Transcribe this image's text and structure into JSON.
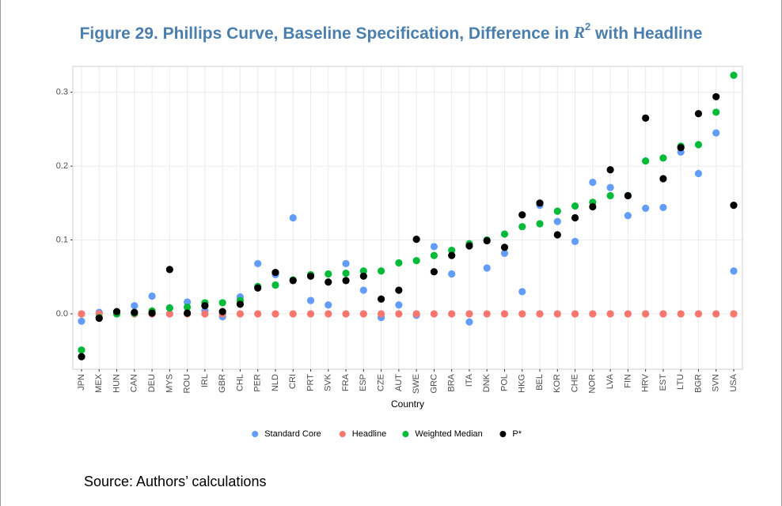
{
  "chart_data": {
    "type": "scatter",
    "title": {
      "before": "Figure 29. Phillips Curve, Baseline Specification, Difference in ",
      "symbol": "R",
      "superscript": "2",
      "after": " with Headline"
    },
    "x_label": "Country",
    "source": "Source: Authors’ calculations",
    "categories": [
      "JPN",
      "MEX",
      "HUN",
      "CAN",
      "DEU",
      "MYS",
      "ROU",
      "IRL",
      "GBR",
      "CHL",
      "PER",
      "NLD",
      "CRI",
      "PRT",
      "SVK",
      "FRA",
      "ESP",
      "CZE",
      "AUT",
      "SWE",
      "GRC",
      "BRA",
      "ITA",
      "DNK",
      "POL",
      "HKG",
      "BEL",
      "KOR",
      "CHE",
      "NOR",
      "LVA",
      "FIN",
      "HRV",
      "EST",
      "LTU",
      "BGR",
      "SVN",
      "USA"
    ],
    "ylim": [
      -0.075,
      0.335
    ],
    "yticks": [
      {
        "value": 0,
        "label": "0.0"
      },
      0.1,
      0.2,
      0.3
    ],
    "grid": true,
    "legend": "bottom",
    "series": [
      {
        "name": "Standard Core",
        "color": "#619cff",
        "values": [
          -0.01,
          0.002,
          0.0,
          0.011,
          0.024,
          0.008,
          0.016,
          0.004,
          -0.004,
          0.023,
          0.068,
          0.053,
          0.13,
          0.018,
          0.012,
          0.068,
          0.032,
          -0.005,
          0.012,
          -0.002,
          0.091,
          0.054,
          -0.011,
          0.062,
          0.082,
          0.03,
          0.147,
          0.125,
          0.098,
          0.178,
          0.171,
          0.133,
          0.143,
          0.144,
          0.219,
          0.19,
          0.245,
          0.058
        ]
      },
      {
        "name": "Headline",
        "color": "#f8766d",
        "values": [
          0,
          0,
          0,
          0,
          0,
          0,
          0,
          0,
          0,
          0,
          0,
          0,
          0,
          0,
          0,
          0,
          0,
          0,
          0,
          0,
          0,
          0,
          0,
          0,
          0,
          0,
          0,
          0,
          0,
          0,
          0,
          0,
          0,
          0,
          0,
          0,
          0,
          0
        ]
      },
      {
        "name": "Weighted Median",
        "color": "#00ba38",
        "values": [
          -0.049,
          -0.005,
          0.0,
          0.001,
          0.004,
          0.008,
          0.009,
          0.015,
          0.015,
          0.018,
          0.037,
          0.039,
          0.046,
          0.053,
          0.054,
          0.055,
          0.058,
          0.058,
          0.069,
          0.072,
          0.079,
          0.086,
          0.095,
          0.1,
          0.108,
          0.118,
          0.122,
          0.139,
          0.146,
          0.151,
          0.16,
          0.16,
          0.207,
          0.211,
          0.227,
          0.229,
          0.273,
          0.323
        ]
      },
      {
        "name": "P*",
        "color": "#000000",
        "values": [
          -0.058,
          -0.006,
          0.003,
          0.002,
          0.001,
          0.06,
          0.001,
          0.011,
          0.003,
          0.013,
          0.035,
          0.056,
          0.045,
          0.051,
          0.043,
          0.045,
          0.051,
          0.02,
          0.032,
          0.101,
          0.057,
          0.079,
          0.092,
          0.099,
          0.09,
          0.134,
          0.15,
          0.107,
          0.13,
          0.145,
          0.195,
          0.16,
          0.265,
          0.183,
          0.225,
          0.271,
          0.294,
          0.147
        ]
      }
    ]
  }
}
